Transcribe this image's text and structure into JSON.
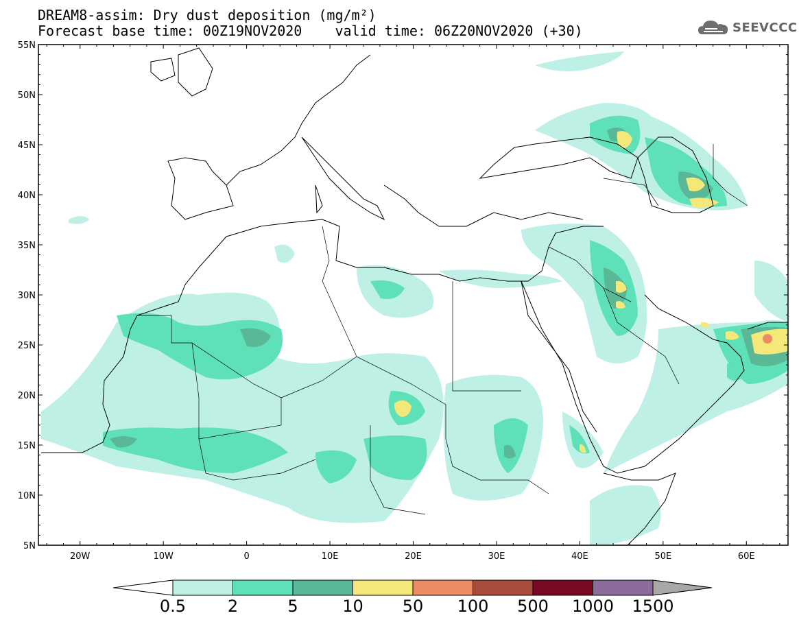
{
  "title_line1": "DREAM8-assim: Dry dust deposition (mg/m²)",
  "title_line2": "Forecast base time: 00Z19NOV2020    valid time: 06Z20NOV2020 (+30)",
  "logo_text": "SEEVCCC",
  "lat_labels": [
    "55N",
    "50N",
    "45N",
    "40N",
    "35N",
    "30N",
    "25N",
    "20N",
    "15N",
    "10N",
    "5N"
  ],
  "lon_labels": [
    "20W",
    "10W",
    "0",
    "10E",
    "20E",
    "30E",
    "40E",
    "50E",
    "60E"
  ],
  "colorbar": {
    "labels": [
      "0.5",
      "2",
      "5",
      "10",
      "50",
      "100",
      "500",
      "1000",
      "1500"
    ],
    "colors": [
      "#bff0e6",
      "#5ee0b8",
      "#5ab896",
      "#f5e87a",
      "#eb8c64",
      "#a84c3c",
      "#7a0a24",
      "#8c6c9c",
      "#a8a8a8"
    ]
  }
}
